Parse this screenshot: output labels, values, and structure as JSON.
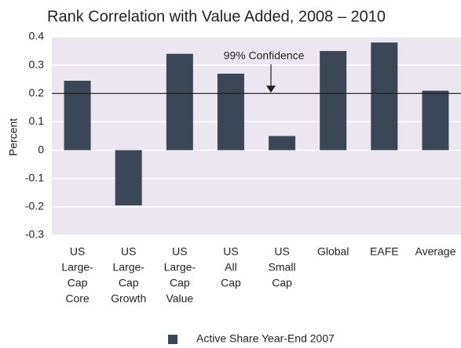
{
  "chart_data": {
    "type": "bar",
    "title": "Rank Correlation with Value Added, 2008 – 2010",
    "y_label": "Percent",
    "categories": [
      [
        "US",
        "Large-",
        "Cap",
        "Core"
      ],
      [
        "US",
        "Large-",
        "Cap",
        "Growth"
      ],
      [
        "US",
        "Large-",
        "Cap",
        "Value"
      ],
      [
        "US",
        "All",
        "Cap"
      ],
      [
        "US",
        "Small",
        "Cap"
      ],
      [
        "Global"
      ],
      [
        "EAFE"
      ],
      [
        "Average"
      ]
    ],
    "series": [
      {
        "name": "Active Share Year-End 2007",
        "color": "#3b4656",
        "values": [
          0.245,
          -0.195,
          0.34,
          0.27,
          0.05,
          0.35,
          0.38,
          0.21
        ]
      }
    ],
    "ylim": [
      -0.3,
      0.4
    ],
    "yticks": [
      -0.3,
      -0.2,
      -0.1,
      0,
      0.1,
      0.2,
      0.3,
      0.4
    ],
    "grid": true,
    "reference_line": {
      "value": 0.2,
      "label": "99% Confidence"
    },
    "legend": "bottom"
  }
}
